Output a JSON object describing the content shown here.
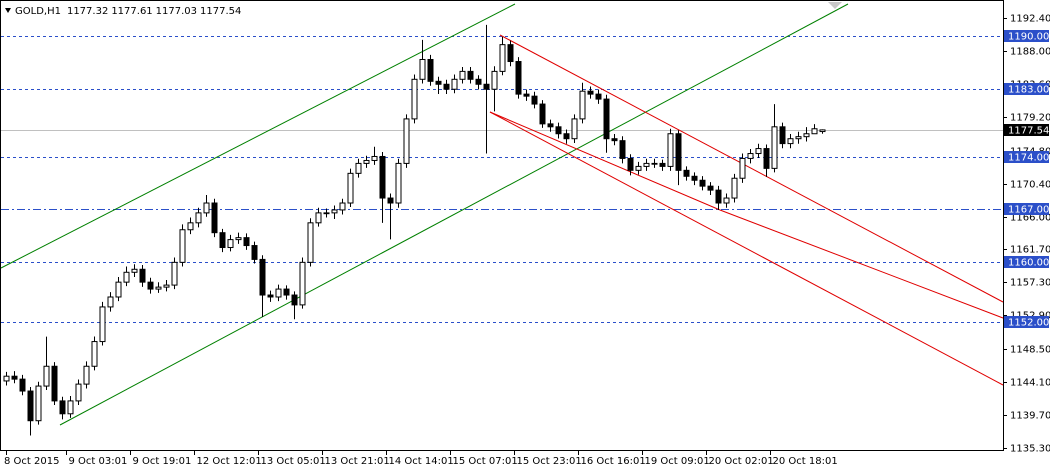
{
  "chart_data": {
    "type": "candlestick",
    "symbol": "GOLD,H1",
    "open": [
      1144.2,
      1144.83,
      1144.44,
      1142.86,
      1138.92,
      1143.52,
      1146.15,
      1141.55,
      1139.84,
      1141.55,
      1143.78,
      1146.15,
      1149.43,
      1154.03,
      1155.35,
      1157.32,
      1158.63,
      1159.03,
      1157.32,
      1156.4,
      1156.66,
      1156.93,
      1159.95,
      1164.28,
      1165.2,
      1166.52,
      1167.83,
      1163.89,
      1161.92,
      1162.97,
      1163.23,
      1162.18,
      1160.34,
      1155.61,
      1155.35,
      1156.4,
      1155.61,
      1154.3,
      1159.95,
      1165.2,
      1166.52,
      1166.52,
      1166.91,
      1167.83,
      1171.77,
      1173.09,
      1173.48,
      1174.01,
      1168.49,
      1167.83,
      1173.09,
      1179.0,
      1184.26,
      1186.89,
      1183.99,
      1183.6,
      1182.94,
      1184.26,
      1185.31,
      1184.26,
      1183.6,
      1182.94,
      1185.31,
      1188.86,
      1186.62,
      1182.29,
      1182.02,
      1180.97,
      1178.34,
      1177.95,
      1177.03,
      1176.37,
      1179.0,
      1182.68,
      1182.29,
      1181.63,
      1176.37,
      1176.11,
      1173.75,
      1172.17,
      1172.69,
      1173.09,
      1173.09,
      1172.69,
      1177.03,
      1172.17,
      1171.38,
      1170.85,
      1170.07,
      1169.54,
      1167.83,
      1168.49,
      1171.12,
      1173.75,
      1174.4,
      1175.06,
      1172.43,
      1177.95,
      1175.72,
      1176.37,
      1176.64,
      1177.03,
      1177.32
    ],
    "high": [
      1145.4,
      1145.5,
      1145.0,
      1143.4,
      1144.1,
      1150.09,
      1146.7,
      1142.1,
      1142.2,
      1144.4,
      1146.8,
      1150.1,
      1154.7,
      1156.0,
      1158.0,
      1159.4,
      1159.7,
      1159.6,
      1157.9,
      1157.3,
      1157.6,
      1160.6,
      1165.0,
      1165.9,
      1167.2,
      1168.9,
      1168.4,
      1164.4,
      1163.6,
      1163.9,
      1163.8,
      1162.7,
      1160.9,
      1156.2,
      1157.0,
      1156.9,
      1156.1,
      1160.6,
      1165.8,
      1167.2,
      1167.1,
      1167.5,
      1168.4,
      1172.4,
      1173.7,
      1174.1,
      1175.3,
      1174.6,
      1169.1,
      1173.7,
      1179.6,
      1184.9,
      1189.5,
      1187.5,
      1184.6,
      1184.2,
      1184.9,
      1185.9,
      1185.9,
      1184.8,
      1191.48,
      1186.0,
      1189.9,
      1189.4,
      1187.2,
      1182.9,
      1182.6,
      1181.5,
      1178.9,
      1178.5,
      1177.6,
      1179.6,
      1183.8,
      1183.3,
      1182.9,
      1182.2,
      1177.0,
      1176.7,
      1174.3,
      1173.3,
      1173.7,
      1173.7,
      1173.6,
      1177.7,
      1177.5,
      1172.7,
      1171.9,
      1171.4,
      1170.6,
      1170.1,
      1169.1,
      1171.7,
      1174.4,
      1175.0,
      1175.7,
      1175.6,
      1180.97,
      1178.5,
      1177.0,
      1177.3,
      1177.9,
      1178.3,
      1177.61
    ],
    "low": [
      1143.6,
      1143.9,
      1142.3,
      1136.95,
      1138.4,
      1143.0,
      1141.0,
      1139.1,
      1139.3,
      1141.0,
      1143.2,
      1145.6,
      1148.9,
      1153.4,
      1154.8,
      1156.8,
      1158.0,
      1156.7,
      1155.8,
      1155.9,
      1156.1,
      1156.4,
      1159.4,
      1163.7,
      1164.6,
      1166.0,
      1163.3,
      1161.3,
      1161.4,
      1162.4,
      1161.6,
      1159.8,
      1152.7,
      1154.7,
      1154.8,
      1155.0,
      1152.4,
      1153.8,
      1159.4,
      1164.7,
      1165.9,
      1165.7,
      1166.3,
      1167.3,
      1171.2,
      1172.5,
      1172.9,
      1165.2,
      1163.0,
      1167.2,
      1172.5,
      1178.4,
      1183.7,
      1183.4,
      1182.3,
      1182.3,
      1182.4,
      1183.7,
      1183.7,
      1182.9,
      1174.4,
      1180.0,
      1184.8,
      1186.0,
      1181.7,
      1181.4,
      1180.4,
      1177.8,
      1177.3,
      1176.4,
      1175.7,
      1175.8,
      1178.4,
      1181.7,
      1181.0,
      1174.5,
      1175.5,
      1173.1,
      1171.5,
      1171.6,
      1172.1,
      1172.5,
      1172.1,
      1172.1,
      1170.2,
      1170.8,
      1170.2,
      1169.5,
      1168.9,
      1166.9,
      1167.2,
      1167.9,
      1170.5,
      1173.1,
      1173.8,
      1171.3,
      1171.9,
      1175.1,
      1175.1,
      1175.7,
      1176.0,
      1177.0,
      1177.03
    ],
    "close": [
      1144.83,
      1144.44,
      1142.86,
      1138.92,
      1143.52,
      1146.15,
      1141.55,
      1139.84,
      1141.55,
      1143.78,
      1146.15,
      1149.43,
      1154.03,
      1155.35,
      1157.32,
      1158.63,
      1159.03,
      1157.32,
      1156.4,
      1156.66,
      1156.93,
      1159.95,
      1164.28,
      1165.2,
      1166.52,
      1167.83,
      1163.89,
      1161.92,
      1162.97,
      1163.23,
      1162.18,
      1160.34,
      1155.61,
      1155.35,
      1156.4,
      1155.61,
      1154.3,
      1159.95,
      1165.2,
      1166.52,
      1166.52,
      1166.91,
      1167.83,
      1171.77,
      1173.09,
      1173.48,
      1174.01,
      1168.49,
      1167.83,
      1173.09,
      1179.0,
      1184.26,
      1186.89,
      1183.99,
      1183.6,
      1182.94,
      1184.26,
      1185.31,
      1184.26,
      1183.6,
      1182.94,
      1185.31,
      1188.86,
      1186.62,
      1182.29,
      1182.02,
      1180.97,
      1178.34,
      1177.95,
      1177.03,
      1176.37,
      1179.0,
      1182.68,
      1182.29,
      1181.63,
      1176.37,
      1176.11,
      1173.75,
      1172.17,
      1172.69,
      1173.09,
      1173.09,
      1172.69,
      1177.03,
      1172.17,
      1171.38,
      1170.85,
      1170.07,
      1169.54,
      1167.83,
      1168.49,
      1171.12,
      1173.75,
      1174.4,
      1175.06,
      1172.43,
      1177.95,
      1175.72,
      1176.37,
      1176.64,
      1177.03,
      1177.69,
      1177.54
    ],
    "xlim": [
      -0.75,
      124.625
    ],
    "xticks": [
      {
        "value": 0,
        "label": "8 Oct 2015"
      },
      {
        "value": 7.5,
        "label": "9 Oct 03:01"
      },
      {
        "value": 15.5,
        "label": "9 Oct 19:01"
      },
      {
        "value": 23.5,
        "label": "12 Oct 12:01"
      },
      {
        "value": 31.5,
        "label": "13 Oct 05:01"
      },
      {
        "value": 39.5,
        "label": "13 Oct 21:01"
      },
      {
        "value": 47.5,
        "label": "14 Oct 14:01"
      },
      {
        "value": 55.5,
        "label": "15 Oct 07:01"
      },
      {
        "value": 63.5,
        "label": "15 Oct 23:01"
      },
      {
        "value": 71.5,
        "label": "16 Oct 16:01"
      },
      {
        "value": 79.5,
        "label": "19 Oct 09:01"
      },
      {
        "value": 87.5,
        "label": "20 Oct 02:01"
      },
      {
        "value": 95.5,
        "label": "20 Oct 18:01"
      }
    ],
    "ylim": [
      1135.03,
      1194.79
    ],
    "yticks": [
      {
        "value": 1192.4,
        "label": "1192.40"
      },
      {
        "value": 1188,
        "label": "1188.00"
      },
      {
        "value": 1183.6,
        "label": "1183.60"
      },
      {
        "value": 1179.2,
        "label": "1179.20"
      },
      {
        "value": 1174.8,
        "label": "1174.80"
      },
      {
        "value": 1170.4,
        "label": "1170.40"
      },
      {
        "value": 1166,
        "label": "1166.00"
      },
      {
        "value": 1161.7,
        "label": "1161.70"
      },
      {
        "value": 1157.3,
        "label": "1157.30"
      },
      {
        "value": 1152.9,
        "label": "1152.90"
      },
      {
        "value": 1148.5,
        "label": "1148.50"
      },
      {
        "value": 1144.1,
        "label": "1144.10"
      },
      {
        "value": 1139.7,
        "label": "1139.70"
      },
      {
        "value": 1135.3,
        "label": "1135.30"
      }
    ],
    "levels": [
      {
        "value": 1190,
        "label": "1190.00",
        "dash": "dash"
      },
      {
        "value": 1183,
        "label": "1183.00",
        "dash": "dash"
      },
      {
        "value": 1174,
        "label": "1174.00",
        "dash": "dash"
      },
      {
        "value": 1167,
        "label": "1167.00",
        "dash": "dashdot"
      },
      {
        "value": 1160,
        "label": "1160.00",
        "dash": "dash"
      },
      {
        "value": 1152,
        "label": "1152.00",
        "dash": "dash"
      }
    ],
    "level_color": "#2b4fc9",
    "bull_color": "#ffffff",
    "bear_color": "#000000",
    "price_line_color": "#c0c0c0"
  }
}
